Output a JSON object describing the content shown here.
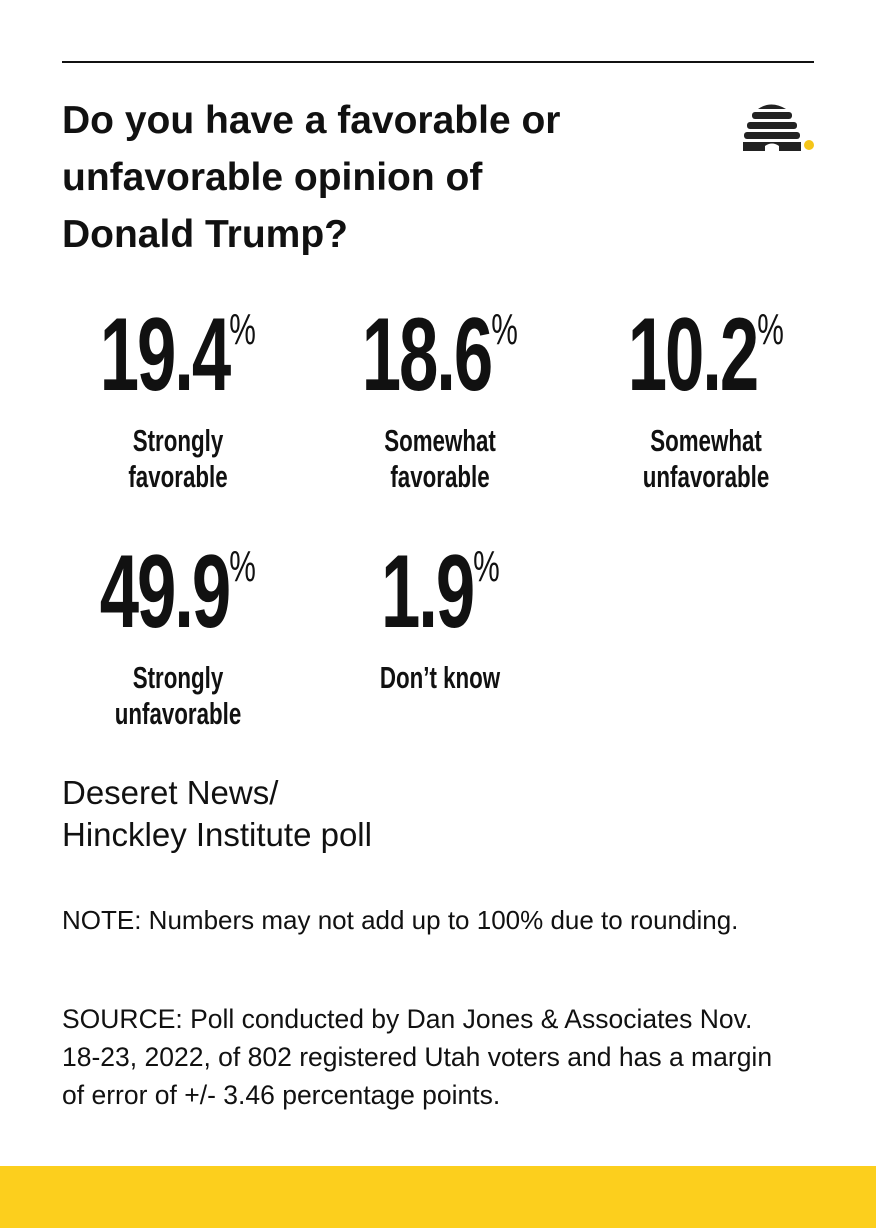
{
  "header": {
    "title_lines": [
      "Do you have a favorable or",
      "unfavorable opinion of",
      "Donald Trump?"
    ]
  },
  "unit": "%",
  "stats": [
    {
      "value": 19.4,
      "label_lines": [
        "Strongly",
        "favorable"
      ]
    },
    {
      "value": 18.6,
      "label_lines": [
        "Somewhat",
        "favorable"
      ]
    },
    {
      "value": 10.2,
      "label_lines": [
        "Somewhat",
        "unfavorable"
      ]
    },
    {
      "value": 49.9,
      "label_lines": [
        "Strongly",
        "unfavorable"
      ]
    },
    {
      "value": 1.9,
      "label_lines": [
        "Don’t know"
      ]
    }
  ],
  "poll_lines": [
    "Deseret News/",
    "Hinckley Institute poll"
  ],
  "note": "NOTE: Numbers may not add up to 100% due to rounding.",
  "source": "SOURCE: Poll conducted by Dan Jones & Associates Nov. 18-23, 2022, of 802 registered Utah voters and has a margin of error of +/- 3.46 percentage points."
}
